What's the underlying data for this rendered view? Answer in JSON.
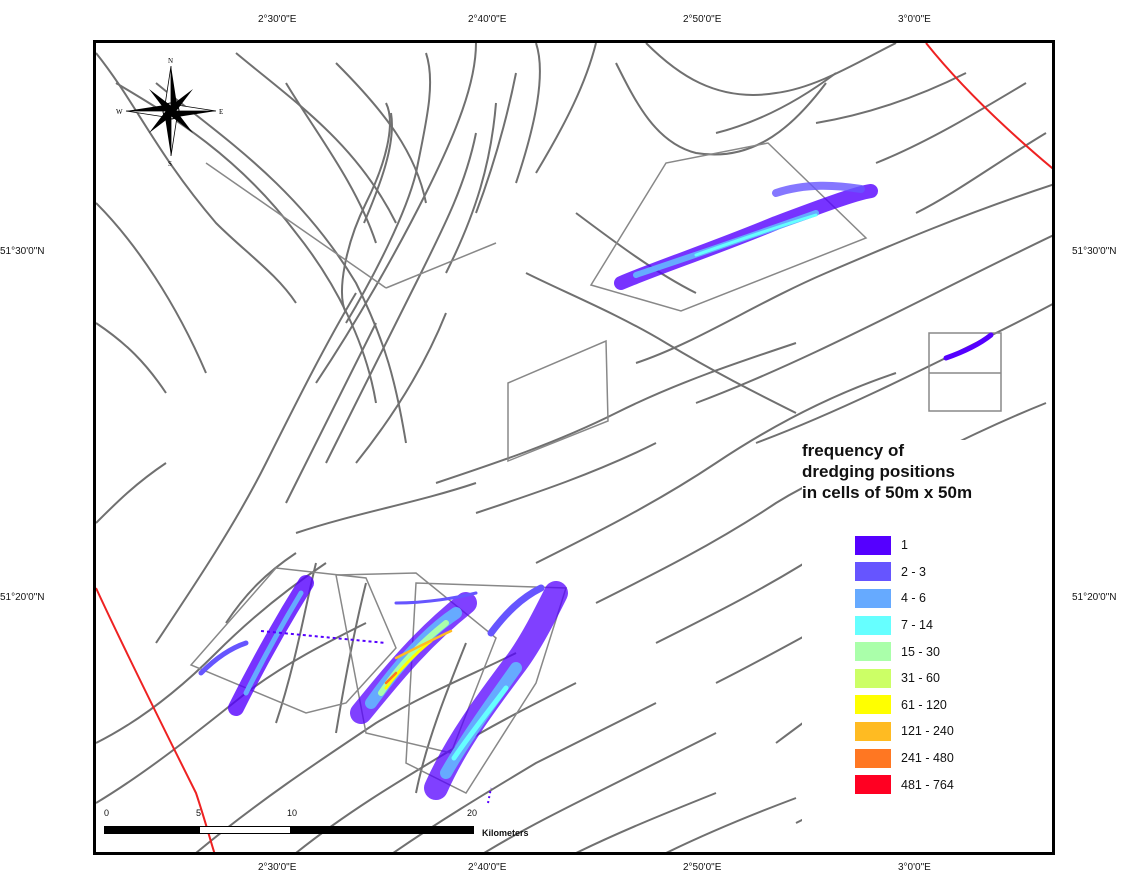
{
  "map": {
    "lon_labels_top": [
      "2°30'0\"E",
      "2°40'0\"E",
      "2°50'0\"E",
      "3°0'0\"E"
    ],
    "lon_labels_bottom": [
      "2°30'0\"E",
      "2°40'0\"E",
      "2°50'0\"E",
      "3°0'0\"E"
    ],
    "lat_labels_left": [
      "51°30'0\"N",
      "51°20'0\"N"
    ],
    "lat_labels_right": [
      "51°30'0\"N",
      "51°20'0\"N"
    ],
    "compass": {
      "n": "N",
      "s": "S",
      "e": "E",
      "w": "W"
    },
    "contour_color": "#707070",
    "boundary_color": "#ee2222",
    "zone_outline_color": "#888888",
    "coast_color": "#fbf8c8"
  },
  "legend": {
    "title_lines": [
      "frequency of",
      "dredging positions",
      "in cells of 50m x 50m"
    ],
    "items": [
      {
        "label": "1",
        "color": "#5500ff"
      },
      {
        "label": "2 - 3",
        "color": "#6655ff"
      },
      {
        "label": "4 - 6",
        "color": "#66aaff"
      },
      {
        "label": "7 - 14",
        "color": "#66ffff"
      },
      {
        "label": "15 - 30",
        "color": "#aaffaa"
      },
      {
        "label": "31 - 60",
        "color": "#ccff66"
      },
      {
        "label": "61 - 120",
        "color": "#ffff00"
      },
      {
        "label": "121 - 240",
        "color": "#ffbb22"
      },
      {
        "label": "241 - 480",
        "color": "#ff7722"
      },
      {
        "label": "481 - 764",
        "color": "#ff0022"
      }
    ]
  },
  "scalebar": {
    "ticks": [
      "0",
      "5",
      "10",
      "20"
    ],
    "unit": "Kilometers"
  }
}
